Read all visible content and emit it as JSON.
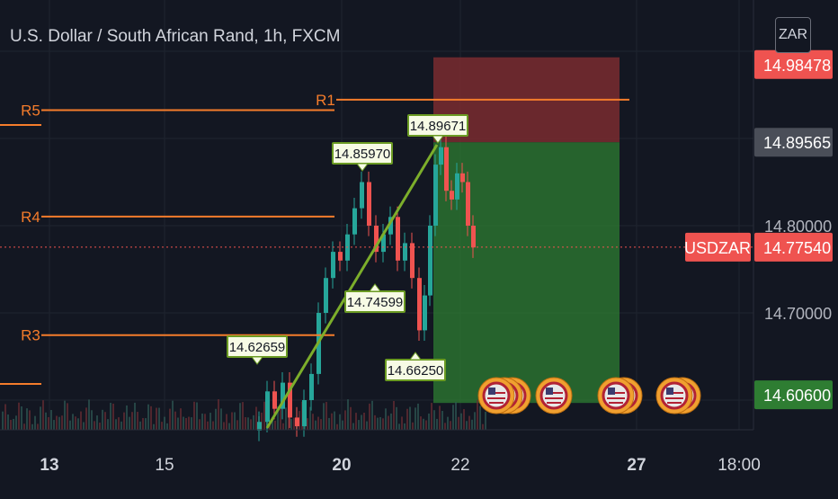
{
  "header": {
    "title": "U.S. Dollar / South African Rand, 1h, FXCM",
    "currency": "ZAR"
  },
  "colors": {
    "background": "#131722",
    "pivot_line": "#f57c2b",
    "bull": "#26a69a",
    "bear": "#ef5350",
    "stop_zone": "#7a2b2f",
    "target_zone": "#2e7d32",
    "label_bg": "#f7fbe5",
    "label_border": "#6b9b23",
    "trend_line": "#7cae2b"
  },
  "chart_data": {
    "type": "candlestick",
    "symbol": "USDZAR",
    "y_axis": {
      "labels": [
        "14.80000",
        "14.70000"
      ],
      "min": 14.54,
      "max": 15.03
    },
    "x_axis": {
      "labels": [
        "13",
        "15",
        "20",
        "22",
        "27",
        "18:00"
      ]
    },
    "price_tags": [
      {
        "text": "14.98478",
        "value": 14.98478,
        "kind": "target"
      },
      {
        "text": "14.89565",
        "value": 14.89565,
        "kind": "entry"
      },
      {
        "text": "14.77540",
        "value": 14.7754,
        "kind": "last",
        "symbol": "USDZAR"
      },
      {
        "text": "14.60600",
        "value": 14.606,
        "kind": "stop"
      }
    ],
    "pivot_levels": [
      {
        "name": "R1",
        "value": 14.9445
      },
      {
        "name": "R5",
        "value": 14.9325
      },
      {
        "name": "R4",
        "value": 14.8105
      },
      {
        "name": "R3",
        "value": 14.6745
      }
    ],
    "point_labels": [
      {
        "text": "14.62659",
        "value": 14.62659
      },
      {
        "text": "14.85970",
        "value": 14.8597
      },
      {
        "text": "14.89671",
        "value": 14.89671
      },
      {
        "text": "14.74599",
        "value": 14.74599
      },
      {
        "text": "14.66250",
        "value": 14.6625
      }
    ],
    "position": {
      "entry": 14.89565,
      "target": 14.98478,
      "stop": 14.606
    },
    "events": [
      {
        "icon": "us-flag-coin-icon",
        "count": 3
      },
      {
        "icon": "us-flag-coin-icon",
        "count": 1
      },
      {
        "icon": "us-flag-coin-icon",
        "count": 2
      },
      {
        "icon": "us-flag-coin-icon",
        "count": 2
      }
    ]
  }
}
